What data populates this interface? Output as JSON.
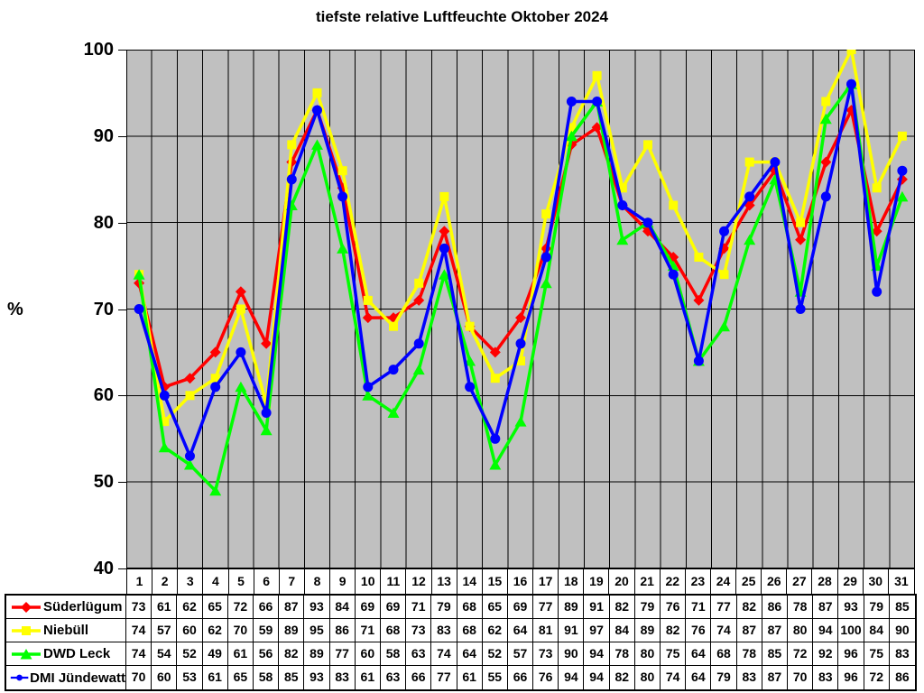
{
  "chart_data": {
    "type": "line",
    "title": "tiefste relative Luftfeuchte Oktober 2024",
    "xlabel": "",
    "ylabel": "%",
    "ylim": [
      40,
      100
    ],
    "yticks": [
      40,
      50,
      60,
      70,
      80,
      90,
      100
    ],
    "grid": true,
    "plot_bg_color": "#C0C0C0",
    "gridline_color": "#000000",
    "legend_position": "table-left-below",
    "categories": [
      1,
      2,
      3,
      4,
      5,
      6,
      7,
      8,
      9,
      10,
      11,
      12,
      13,
      14,
      15,
      16,
      17,
      18,
      19,
      20,
      21,
      22,
      23,
      24,
      25,
      26,
      27,
      28,
      29,
      30,
      31
    ],
    "series": [
      {
        "name": "Süderlügum",
        "color": "#FF0000",
        "marker": "diamond",
        "values": [
          73,
          61,
          62,
          65,
          72,
          66,
          87,
          93,
          84,
          69,
          69,
          71,
          79,
          68,
          65,
          69,
          77,
          89,
          91,
          82,
          79,
          76,
          71,
          77,
          82,
          86,
          78,
          87,
          93,
          79,
          85
        ]
      },
      {
        "name": "Niebüll",
        "color": "#FFFF00",
        "marker": "square",
        "values": [
          74,
          57,
          60,
          62,
          70,
          59,
          89,
          95,
          86,
          71,
          68,
          73,
          83,
          68,
          62,
          64,
          81,
          91,
          97,
          84,
          89,
          82,
          76,
          74,
          87,
          87,
          80,
          94,
          100,
          84,
          90
        ]
      },
      {
        "name": "DWD Leck",
        "color": "#00FF00",
        "marker": "triangle",
        "values": [
          74,
          54,
          52,
          49,
          61,
          56,
          82,
          89,
          77,
          60,
          58,
          63,
          74,
          64,
          52,
          57,
          73,
          90,
          94,
          78,
          80,
          75,
          64,
          68,
          78,
          85,
          72,
          92,
          96,
          75,
          83
        ]
      },
      {
        "name": "DMI Jündewatt",
        "color": "#0000FF",
        "marker": "circle",
        "values": [
          70,
          60,
          53,
          61,
          65,
          58,
          85,
          93,
          83,
          61,
          63,
          66,
          77,
          61,
          55,
          66,
          76,
          94,
          94,
          82,
          80,
          74,
          64,
          79,
          83,
          87,
          70,
          83,
          96,
          72,
          86
        ]
      }
    ]
  }
}
